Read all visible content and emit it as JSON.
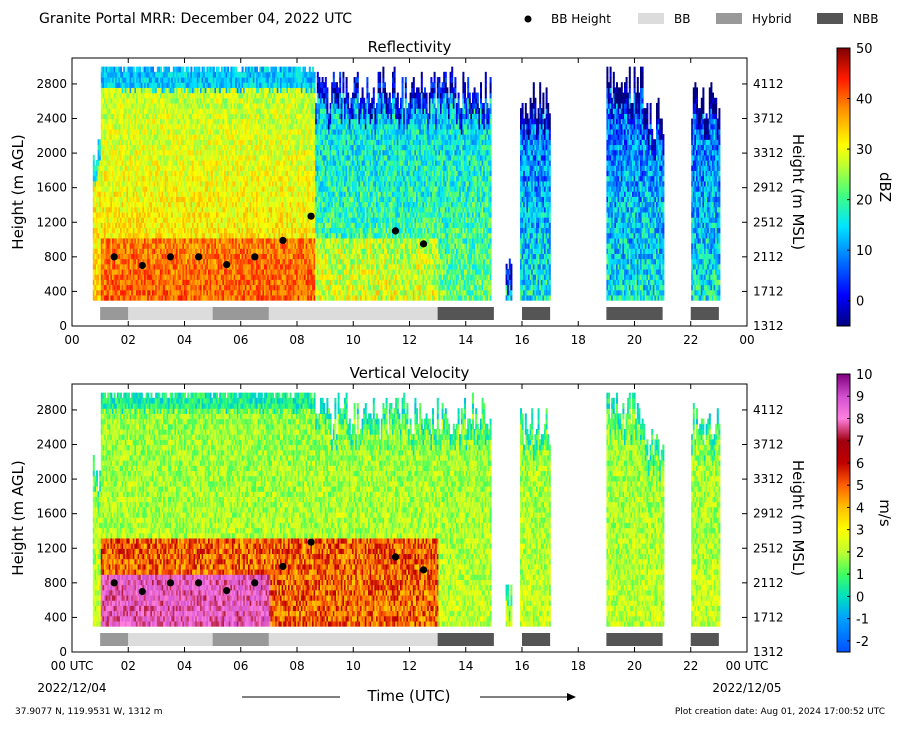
{
  "header": {
    "title": "Granite Portal MRR:  December 04, 2022 UTC"
  },
  "legend": [
    {
      "label": "BB Height",
      "kind": "dot",
      "color": "#000000"
    },
    {
      "label": "BB",
      "kind": "bar",
      "color": "#dcdcdc"
    },
    {
      "label": "Hybrid",
      "kind": "bar",
      "color": "#999999"
    },
    {
      "label": "NBB",
      "kind": "bar",
      "color": "#555555"
    }
  ],
  "footer": {
    "location": "37.9077 N, 119.9531 W, 1312 m",
    "created": "Plot creation date: Aug 01, 2024 17:00:52 UTC",
    "xlabel": "Time (UTC)",
    "start_date": "2022/12/04",
    "end_date": "2022/12/05"
  },
  "chart_data": [
    {
      "type": "heatmap",
      "title": "Reflectivity",
      "ylabel": "Height (m AGL)",
      "ylabel_right": "Height (m MSL)",
      "xlim": [
        0,
        24
      ],
      "ylim": [
        0,
        3100
      ],
      "x_ticks": [
        "00",
        "02",
        "04",
        "06",
        "08",
        "10",
        "12",
        "14",
        "16",
        "18",
        "20",
        "22",
        "00"
      ],
      "y_ticks": [
        "0",
        "400",
        "800",
        "1200",
        "1600",
        "2000",
        "2400",
        "2800"
      ],
      "y_ticks_right": [
        "1312",
        "1712",
        "2112",
        "2512",
        "2912",
        "3312",
        "3712",
        "4112"
      ],
      "colorbar": {
        "label": "dBZ",
        "range": [
          -5,
          50
        ],
        "ticks": [
          "0",
          "10",
          "20",
          "30",
          "40",
          "50"
        ]
      },
      "bb_height": {
        "x": [
          1.5,
          2.5,
          3.5,
          4.5,
          5.5,
          6.5,
          7.5,
          8.5,
          11.5,
          12.5
        ],
        "y": [
          800,
          700,
          800,
          800,
          710,
          800,
          990,
          1270,
          1100,
          950
        ]
      },
      "bb_type": [
        {
          "start": 1,
          "end": 2,
          "type": "Hybrid"
        },
        {
          "start": 2,
          "end": 5,
          "type": "BB"
        },
        {
          "start": 5,
          "end": 7,
          "type": "Hybrid"
        },
        {
          "start": 7,
          "end": 13,
          "type": "BB"
        },
        {
          "start": 13,
          "end": 15,
          "type": "NBB"
        },
        {
          "start": 16,
          "end": 17,
          "type": "NBB"
        },
        {
          "start": 19,
          "end": 21,
          "type": "NBB"
        },
        {
          "start": 22,
          "end": 23,
          "type": "NBB"
        }
      ]
    },
    {
      "type": "heatmap",
      "title": "Vertical Velocity",
      "ylabel": "Height (m AGL)",
      "ylabel_right": "Height (m MSL)",
      "xlim": [
        0,
        24
      ],
      "ylim": [
        0,
        3100
      ],
      "x_ticks": [
        "00 UTC",
        "02",
        "04",
        "06",
        "08",
        "10",
        "12",
        "14",
        "16",
        "18",
        "20",
        "22",
        "00 UTC"
      ],
      "y_ticks": [
        "0",
        "400",
        "800",
        "1200",
        "1600",
        "2000",
        "2400",
        "2800"
      ],
      "y_ticks_right": [
        "1312",
        "1712",
        "2112",
        "2512",
        "2912",
        "3312",
        "3712",
        "4112"
      ],
      "colorbar": {
        "label": "m/s",
        "range": [
          -2.5,
          10
        ],
        "ticks": [
          "-2",
          "-1",
          "0",
          "1",
          "2",
          "3",
          "4",
          "5",
          "6",
          "7",
          "8",
          "9",
          "10"
        ]
      },
      "bb_height": {
        "x": [
          1.5,
          2.5,
          3.5,
          4.5,
          5.5,
          6.5,
          7.5,
          8.5,
          11.5,
          12.5
        ],
        "y": [
          800,
          700,
          800,
          800,
          710,
          800,
          990,
          1270,
          1100,
          950
        ]
      },
      "bb_type": [
        {
          "start": 1,
          "end": 2,
          "type": "Hybrid"
        },
        {
          "start": 2,
          "end": 5,
          "type": "BB"
        },
        {
          "start": 5,
          "end": 7,
          "type": "Hybrid"
        },
        {
          "start": 7,
          "end": 13,
          "type": "BB"
        },
        {
          "start": 13,
          "end": 15,
          "type": "NBB"
        },
        {
          "start": 16,
          "end": 17,
          "type": "NBB"
        },
        {
          "start": 19,
          "end": 21,
          "type": "NBB"
        },
        {
          "start": 22,
          "end": 23,
          "type": "NBB"
        }
      ]
    }
  ]
}
